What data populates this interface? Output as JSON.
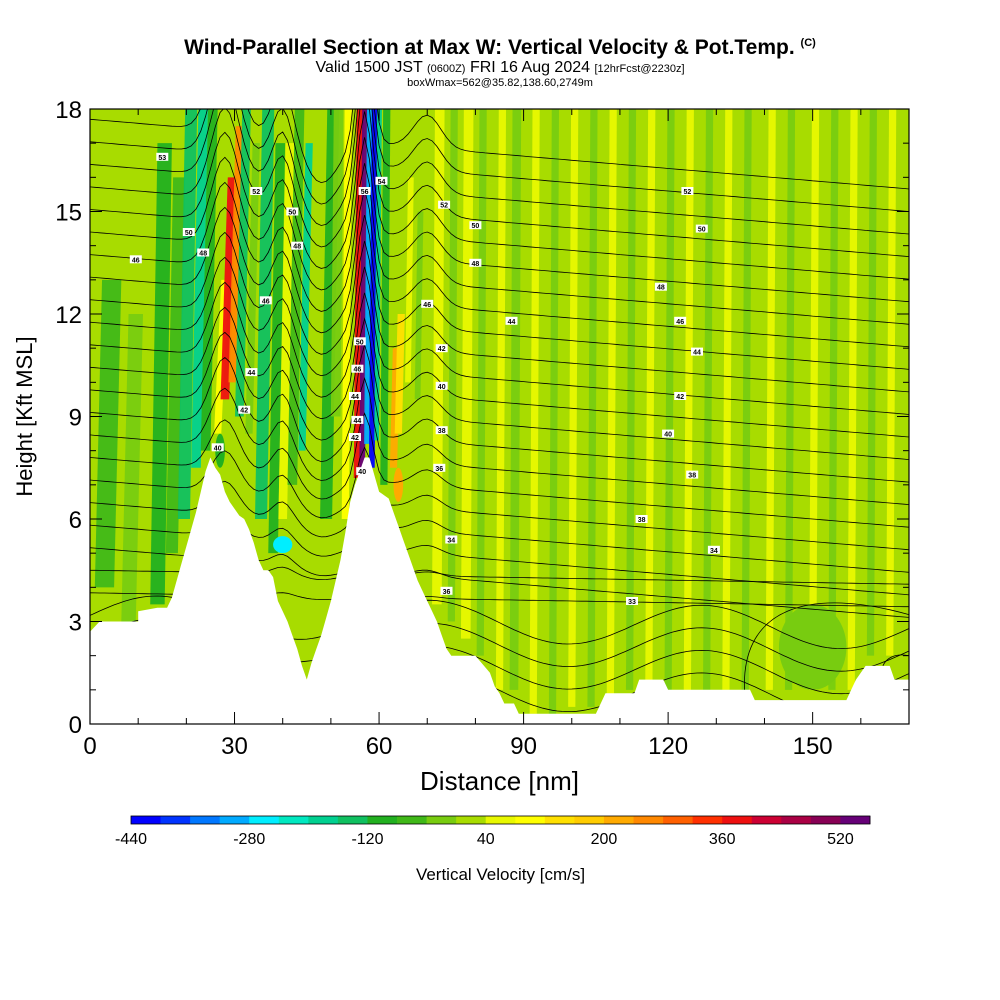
{
  "title": {
    "main": "Wind-Parallel Section at Max W: Vertical Velocity & Pot.Temp.",
    "copyright": "(C)",
    "valid_prefix": "Valid 1500 JST",
    "valid_z": "(0600Z)",
    "valid_date": "FRI 16 Aug 2024",
    "forecast": "[12hrFcst@2230z]",
    "box_info": "boxWmax=562@35.82,138.60,2749m"
  },
  "chart_data": {
    "type": "contour",
    "xlabel": "Distance [nm]",
    "ylabel": "Height [Kft MSL]",
    "xlim": [
      0,
      170
    ],
    "ylim": [
      0,
      18
    ],
    "x_ticks": [
      0,
      30,
      60,
      90,
      120,
      150
    ],
    "y_ticks": [
      0,
      3,
      6,
      9,
      12,
      15,
      18
    ],
    "x_tick_labels": [
      "0",
      "30",
      "60",
      "90",
      "120",
      "150"
    ],
    "y_tick_labels": [
      "0",
      "3",
      "6",
      "9",
      "12",
      "15",
      "18"
    ],
    "colorbar": {
      "label": "Vertical Velocity [cm/s]",
      "min": -440,
      "step": 40,
      "colors": [
        "#0000ff",
        "#0033ff",
        "#0077ff",
        "#00aaff",
        "#00eeff",
        "#00e8c0",
        "#00d090",
        "#10c060",
        "#22b020",
        "#40b818",
        "#78cc10",
        "#a8dc00",
        "#e8f800",
        "#ffff00",
        "#ffe000",
        "#ffcc00",
        "#ffaa00",
        "#ff8800",
        "#ff6000",
        "#ff3000",
        "#ee1010",
        "#cc0033",
        "#aa0044",
        "#880055",
        "#660077"
      ],
      "tick_values": [
        -440,
        -280,
        -120,
        40,
        200,
        360,
        520
      ],
      "tick_labels": [
        "-440",
        "-280",
        "-120",
        "40",
        "200",
        "360",
        "520"
      ]
    },
    "terrain": [
      [
        0,
        2.7
      ],
      [
        2,
        3.0
      ],
      [
        10,
        3.0
      ],
      [
        10,
        3.3
      ],
      [
        14,
        3.4
      ],
      [
        16,
        3.4
      ],
      [
        17,
        3.7
      ],
      [
        18,
        4.2
      ],
      [
        19,
        4.7
      ],
      [
        20,
        5.2
      ],
      [
        21,
        5.7
      ],
      [
        22,
        6.2
      ],
      [
        23,
        6.8
      ],
      [
        24,
        7.4
      ],
      [
        25,
        7.8
      ],
      [
        26,
        7.5
      ],
      [
        27,
        7.3
      ],
      [
        28,
        6.8
      ],
      [
        29,
        6.5
      ],
      [
        30,
        6.3
      ],
      [
        31,
        6.1
      ],
      [
        32,
        6.0
      ],
      [
        33,
        5.7
      ],
      [
        34,
        5.3
      ],
      [
        35,
        4.8
      ],
      [
        36,
        4.5
      ],
      [
        37,
        4.5
      ],
      [
        38,
        4.3
      ],
      [
        39,
        3.6
      ],
      [
        40,
        3.3
      ],
      [
        41,
        3.0
      ],
      [
        42,
        2.6
      ],
      [
        43,
        2.2
      ],
      [
        44,
        1.7
      ],
      [
        45,
        1.3
      ],
      [
        46,
        1.8
      ],
      [
        47,
        2.2
      ],
      [
        48,
        2.6
      ],
      [
        49,
        3.1
      ],
      [
        50,
        3.6
      ],
      [
        51,
        4.2
      ],
      [
        52,
        4.8
      ],
      [
        53,
        5.6
      ],
      [
        54,
        6.5
      ],
      [
        55,
        7.0
      ],
      [
        56,
        7.4
      ],
      [
        57,
        7.8
      ],
      [
        58,
        7.8
      ],
      [
        59,
        7.3
      ],
      [
        60,
        6.8
      ],
      [
        61,
        6.7
      ],
      [
        62,
        6.6
      ],
      [
        63,
        6.2
      ],
      [
        64,
        5.8
      ],
      [
        65,
        5.4
      ],
      [
        66,
        5.0
      ],
      [
        67,
        4.6
      ],
      [
        68,
        4.2
      ],
      [
        69,
        3.9
      ],
      [
        70,
        3.6
      ],
      [
        71,
        3.3
      ],
      [
        72,
        3.0
      ],
      [
        73,
        2.6
      ],
      [
        74,
        2.2
      ],
      [
        75,
        2.0
      ],
      [
        80,
        2.0
      ],
      [
        83,
        1.5
      ],
      [
        84,
        1.1
      ],
      [
        85,
        0.9
      ],
      [
        86,
        0.6
      ],
      [
        87,
        0.6
      ],
      [
        88,
        0.6
      ],
      [
        89,
        0.3
      ],
      [
        105,
        0.3
      ],
      [
        106,
        0.6
      ],
      [
        107,
        0.9
      ],
      [
        113,
        0.9
      ],
      [
        114,
        1.3
      ],
      [
        119,
        1.3
      ],
      [
        120,
        1.0
      ],
      [
        137,
        1.0
      ],
      [
        138,
        0.7
      ],
      [
        157,
        0.7
      ],
      [
        158,
        1.0
      ],
      [
        159,
        1.3
      ],
      [
        161,
        1.7
      ],
      [
        166,
        1.7
      ],
      [
        167,
        1.3
      ],
      [
        170,
        1.3
      ]
    ],
    "theta_labels": [
      {
        "text": "53",
        "x": 15,
        "y": 16.6
      },
      {
        "text": "50",
        "x": 20.5,
        "y": 14.4
      },
      {
        "text": "46",
        "x": 9.5,
        "y": 13.6
      },
      {
        "text": "48",
        "x": 23.5,
        "y": 13.8
      },
      {
        "text": "52",
        "x": 34.5,
        "y": 15.6
      },
      {
        "text": "50",
        "x": 42,
        "y": 15.0
      },
      {
        "text": "48",
        "x": 43,
        "y": 14.0
      },
      {
        "text": "46",
        "x": 36.5,
        "y": 12.4
      },
      {
        "text": "44",
        "x": 33.5,
        "y": 10.3
      },
      {
        "text": "42",
        "x": 32,
        "y": 9.2
      },
      {
        "text": "40",
        "x": 26.5,
        "y": 8.1
      },
      {
        "text": "56",
        "x": 57,
        "y": 15.6
      },
      {
        "text": "54",
        "x": 60.5,
        "y": 15.9
      },
      {
        "text": "50",
        "x": 56,
        "y": 11.2
      },
      {
        "text": "46",
        "x": 55.5,
        "y": 10.4
      },
      {
        "text": "44",
        "x": 55,
        "y": 9.6
      },
      {
        "text": "44",
        "x": 55.5,
        "y": 8.9
      },
      {
        "text": "42",
        "x": 55,
        "y": 8.4
      },
      {
        "text": "40",
        "x": 56.5,
        "y": 7.4
      },
      {
        "text": "52",
        "x": 73.5,
        "y": 15.2
      },
      {
        "text": "50",
        "x": 80,
        "y": 14.6
      },
      {
        "text": "48",
        "x": 80,
        "y": 13.5
      },
      {
        "text": "46",
        "x": 70,
        "y": 12.3
      },
      {
        "text": "44",
        "x": 87.5,
        "y": 11.8
      },
      {
        "text": "42",
        "x": 73,
        "y": 11.0
      },
      {
        "text": "40",
        "x": 73,
        "y": 9.9
      },
      {
        "text": "38",
        "x": 73,
        "y": 8.6
      },
      {
        "text": "36",
        "x": 72.5,
        "y": 7.5
      },
      {
        "text": "34",
        "x": 75,
        "y": 5.4
      },
      {
        "text": "36",
        "x": 74,
        "y": 3.9
      },
      {
        "text": "52",
        "x": 124,
        "y": 15.6
      },
      {
        "text": "50",
        "x": 127,
        "y": 14.5
      },
      {
        "text": "48",
        "x": 118.5,
        "y": 12.8
      },
      {
        "text": "46",
        "x": 122.5,
        "y": 11.8
      },
      {
        "text": "44",
        "x": 126,
        "y": 10.9
      },
      {
        "text": "42",
        "x": 122.5,
        "y": 9.6
      },
      {
        "text": "40",
        "x": 120,
        "y": 8.5
      },
      {
        "text": "38",
        "x": 125,
        "y": 7.3
      },
      {
        "text": "38",
        "x": 114.5,
        "y": 6.0
      },
      {
        "text": "34",
        "x": 129.5,
        "y": 5.1
      },
      {
        "text": "33",
        "x": 112.5,
        "y": 3.6
      }
    ]
  }
}
